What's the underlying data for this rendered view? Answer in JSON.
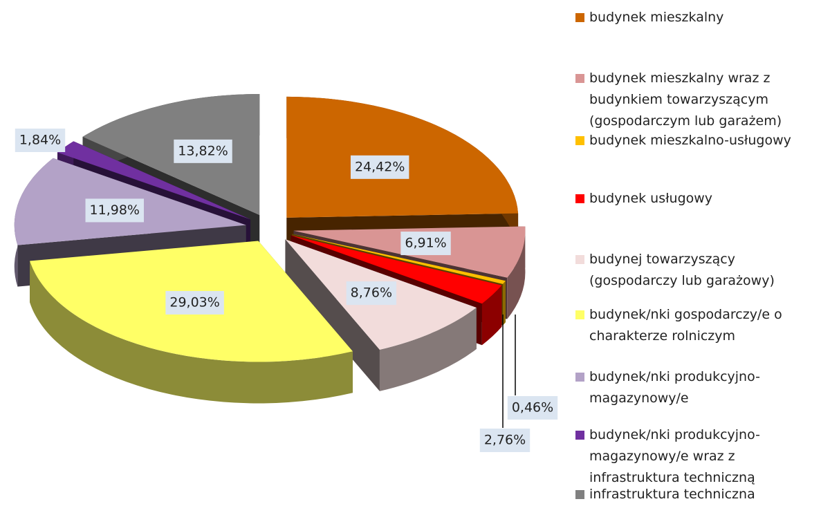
{
  "chart_data": {
    "type": "pie",
    "categories": [
      "budynek mieszkalny",
      "budynek mieszkalny wraz z budynkiem towarzyszącym (gospodarczym lub garażem)",
      "budynek mieszkalno-usługowy",
      "budynek usługowy",
      "budynej towarzyszący (gospodarczy lub garażowy)",
      "budynek/nki gospodarczy/e o charakterze rolniczym",
      "budynek/nki produkcyjno-magazynowy/e",
      "budynek/nki produkcyjno-magazynowy/e wraz z infrastruktura techniczną",
      "infrastruktura techniczna"
    ],
    "values": [
      24.42,
      6.91,
      0.46,
      2.76,
      8.76,
      29.03,
      11.98,
      1.84,
      13.82
    ],
    "value_labels": [
      "24,42%",
      "6,91%",
      "0,46%",
      "2,76%",
      "8,76%",
      "29,03%",
      "11,98%",
      "1,84%",
      "13,82%"
    ],
    "colors": [
      "#cc6600",
      "#d99594",
      "#ffc000",
      "#ff0000",
      "#f2dcdb",
      "#ffff66",
      "#b3a2c7",
      "#7030a0",
      "#808080"
    ],
    "legend": "right"
  }
}
